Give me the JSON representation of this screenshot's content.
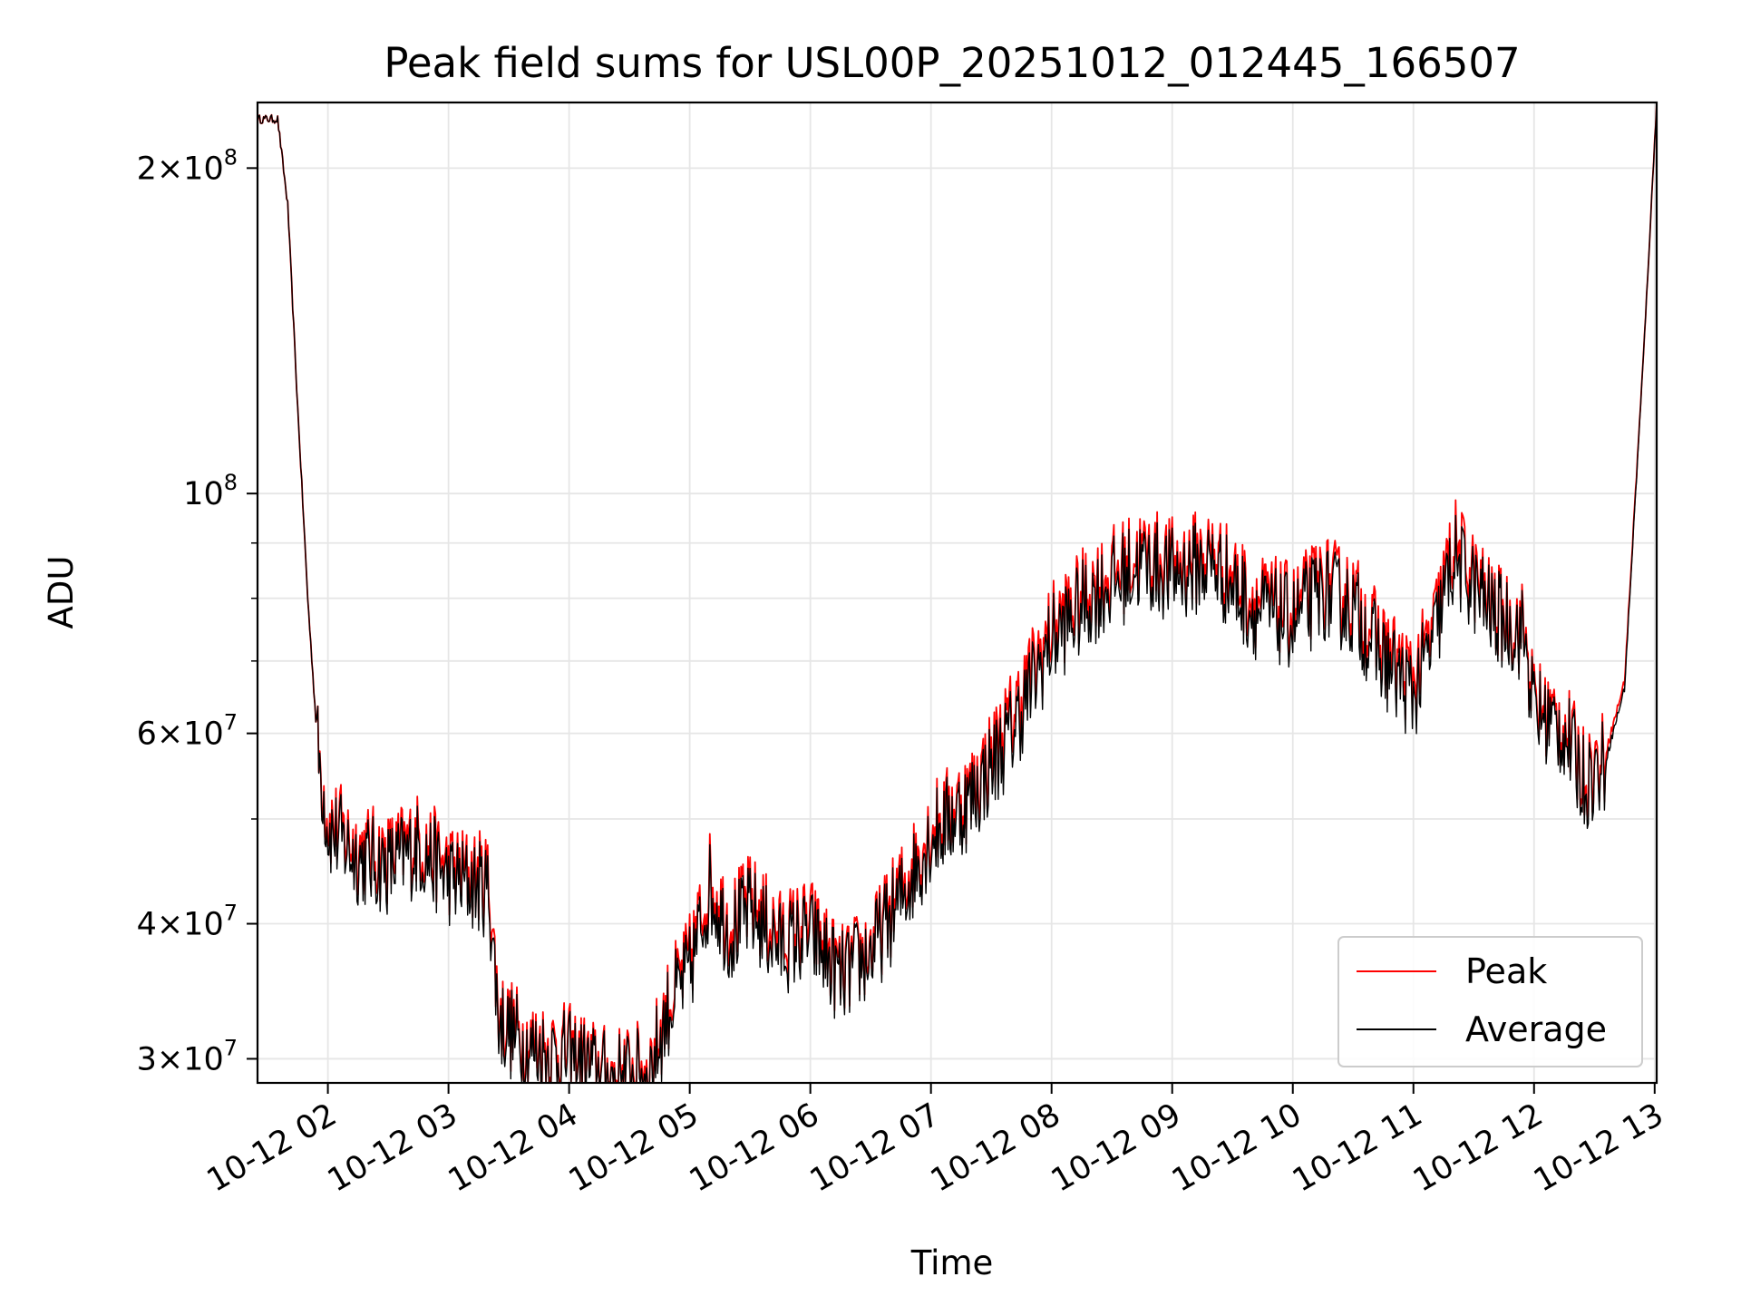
{
  "chart_data": {
    "type": "line",
    "title": "Peak field sums for USL00P_20251012_012445_166507",
    "xlabel": "Time",
    "ylabel": "ADU",
    "yscale": "log",
    "xlim": [
      "10-12 01:25",
      "10-12 13:01"
    ],
    "ylim": [
      28500000,
      230000000
    ],
    "grid": true,
    "legend": {
      "position": "lower-right",
      "entries": [
        "Peak",
        "Average"
      ]
    },
    "x_ticks": [
      "10-12 02",
      "10-12 03",
      "10-12 04",
      "10-12 05",
      "10-12 06",
      "10-12 07",
      "10-12 08",
      "10-12 09",
      "10-12 10",
      "10-12 11",
      "10-12 12",
      "10-12 13"
    ],
    "y_ticks": [
      {
        "value": 200000000,
        "mantissa": "2",
        "exponent": "8"
      },
      {
        "value": 100000000,
        "mantissa": "",
        "exponent": "8"
      },
      {
        "value": 60000000,
        "mantissa": "6",
        "exponent": "7"
      },
      {
        "value": 40000000,
        "mantissa": "4",
        "exponent": "7"
      },
      {
        "value": 30000000,
        "mantissa": "3",
        "exponent": "7"
      }
    ],
    "x_time_format": "10-12 HH:MM",
    "series": [
      {
        "name": "Peak",
        "color": "#ff0000",
        "x": [
          "10-12 01:25",
          "10-12 01:35",
          "10-12 01:40",
          "10-12 01:45",
          "10-12 01:50",
          "10-12 01:55",
          "10-12 02:00",
          "10-12 02:15",
          "10-12 02:30",
          "10-12 02:45",
          "10-12 03:00",
          "10-12 03:10",
          "10-12 03:20",
          "10-12 03:25",
          "10-12 03:40",
          "10-12 04:00",
          "10-12 04:20",
          "10-12 04:40",
          "10-12 04:50",
          "10-12 05:00",
          "10-12 05:10",
          "10-12 05:20",
          "10-12 05:30",
          "10-12 05:45",
          "10-12 06:00",
          "10-12 06:15",
          "10-12 06:30",
          "10-12 06:45",
          "10-12 07:00",
          "10-12 07:20",
          "10-12 07:40",
          "10-12 08:00",
          "10-12 08:20",
          "10-12 08:45",
          "10-12 09:00",
          "10-12 09:20",
          "10-12 09:40",
          "10-12 10:00",
          "10-12 10:15",
          "10-12 10:30",
          "10-12 10:45",
          "10-12 11:00",
          "10-12 11:10",
          "10-12 11:20",
          "10-12 11:40",
          "10-12 11:55",
          "10-12 12:00",
          "10-12 12:15",
          "10-12 12:25",
          "10-12 12:35",
          "10-12 12:45",
          "10-12 12:55",
          "10-12 13:01"
        ],
        "values": [
          222000000,
          222000000,
          185000000,
          120000000,
          80000000,
          58000000,
          50000000,
          47000000,
          46000000,
          48000000,
          45000000,
          44500000,
          44000000,
          33000000,
          31000000,
          30500000,
          29000000,
          29500000,
          34000000,
          37000000,
          44000000,
          40000000,
          42000000,
          39000000,
          40000000,
          36000000,
          38000000,
          43000000,
          49000000,
          53000000,
          62000000,
          75000000,
          82000000,
          88000000,
          86000000,
          88000000,
          80000000,
          78000000,
          83000000,
          80000000,
          72000000,
          67000000,
          75000000,
          90000000,
          78000000,
          75000000,
          64000000,
          61000000,
          55000000,
          57000000,
          67000000,
          140000000,
          230000000
        ]
      },
      {
        "name": "Average",
        "color": "#000000",
        "x": [
          "10-12 01:25",
          "10-12 01:35",
          "10-12 01:40",
          "10-12 01:45",
          "10-12 01:50",
          "10-12 01:55",
          "10-12 02:00",
          "10-12 02:15",
          "10-12 02:30",
          "10-12 02:45",
          "10-12 03:00",
          "10-12 03:10",
          "10-12 03:20",
          "10-12 03:25",
          "10-12 03:40",
          "10-12 04:00",
          "10-12 04:20",
          "10-12 04:40",
          "10-12 04:50",
          "10-12 05:00",
          "10-12 05:10",
          "10-12 05:20",
          "10-12 05:30",
          "10-12 05:45",
          "10-12 06:00",
          "10-12 06:15",
          "10-12 06:30",
          "10-12 06:45",
          "10-12 07:00",
          "10-12 07:20",
          "10-12 07:40",
          "10-12 08:00",
          "10-12 08:20",
          "10-12 08:45",
          "10-12 09:00",
          "10-12 09:20",
          "10-12 09:40",
          "10-12 10:00",
          "10-12 10:15",
          "10-12 10:30",
          "10-12 10:45",
          "10-12 11:00",
          "10-12 11:10",
          "10-12 11:20",
          "10-12 11:40",
          "10-12 11:55",
          "10-12 12:00",
          "10-12 12:15",
          "10-12 12:25",
          "10-12 12:35",
          "10-12 12:45",
          "10-12 12:55",
          "10-12 13:01"
        ],
        "values": [
          222000000,
          222000000,
          185000000,
          120000000,
          80000000,
          58000000,
          49000000,
          46000000,
          45000000,
          47000000,
          44000000,
          43500000,
          43000000,
          32500000,
          30500000,
          30000000,
          28700000,
          29000000,
          33500000,
          36000000,
          43000000,
          39000000,
          41000000,
          38000000,
          39000000,
          35500000,
          37500000,
          42000000,
          48000000,
          52000000,
          60000000,
          73000000,
          80000000,
          86000000,
          84000000,
          86000000,
          78000000,
          76000000,
          81000000,
          78000000,
          70000000,
          65000000,
          73000000,
          87000000,
          77000000,
          74000000,
          63000000,
          60000000,
          54000000,
          56000000,
          66000000,
          140000000,
          230000000
        ]
      }
    ]
  }
}
